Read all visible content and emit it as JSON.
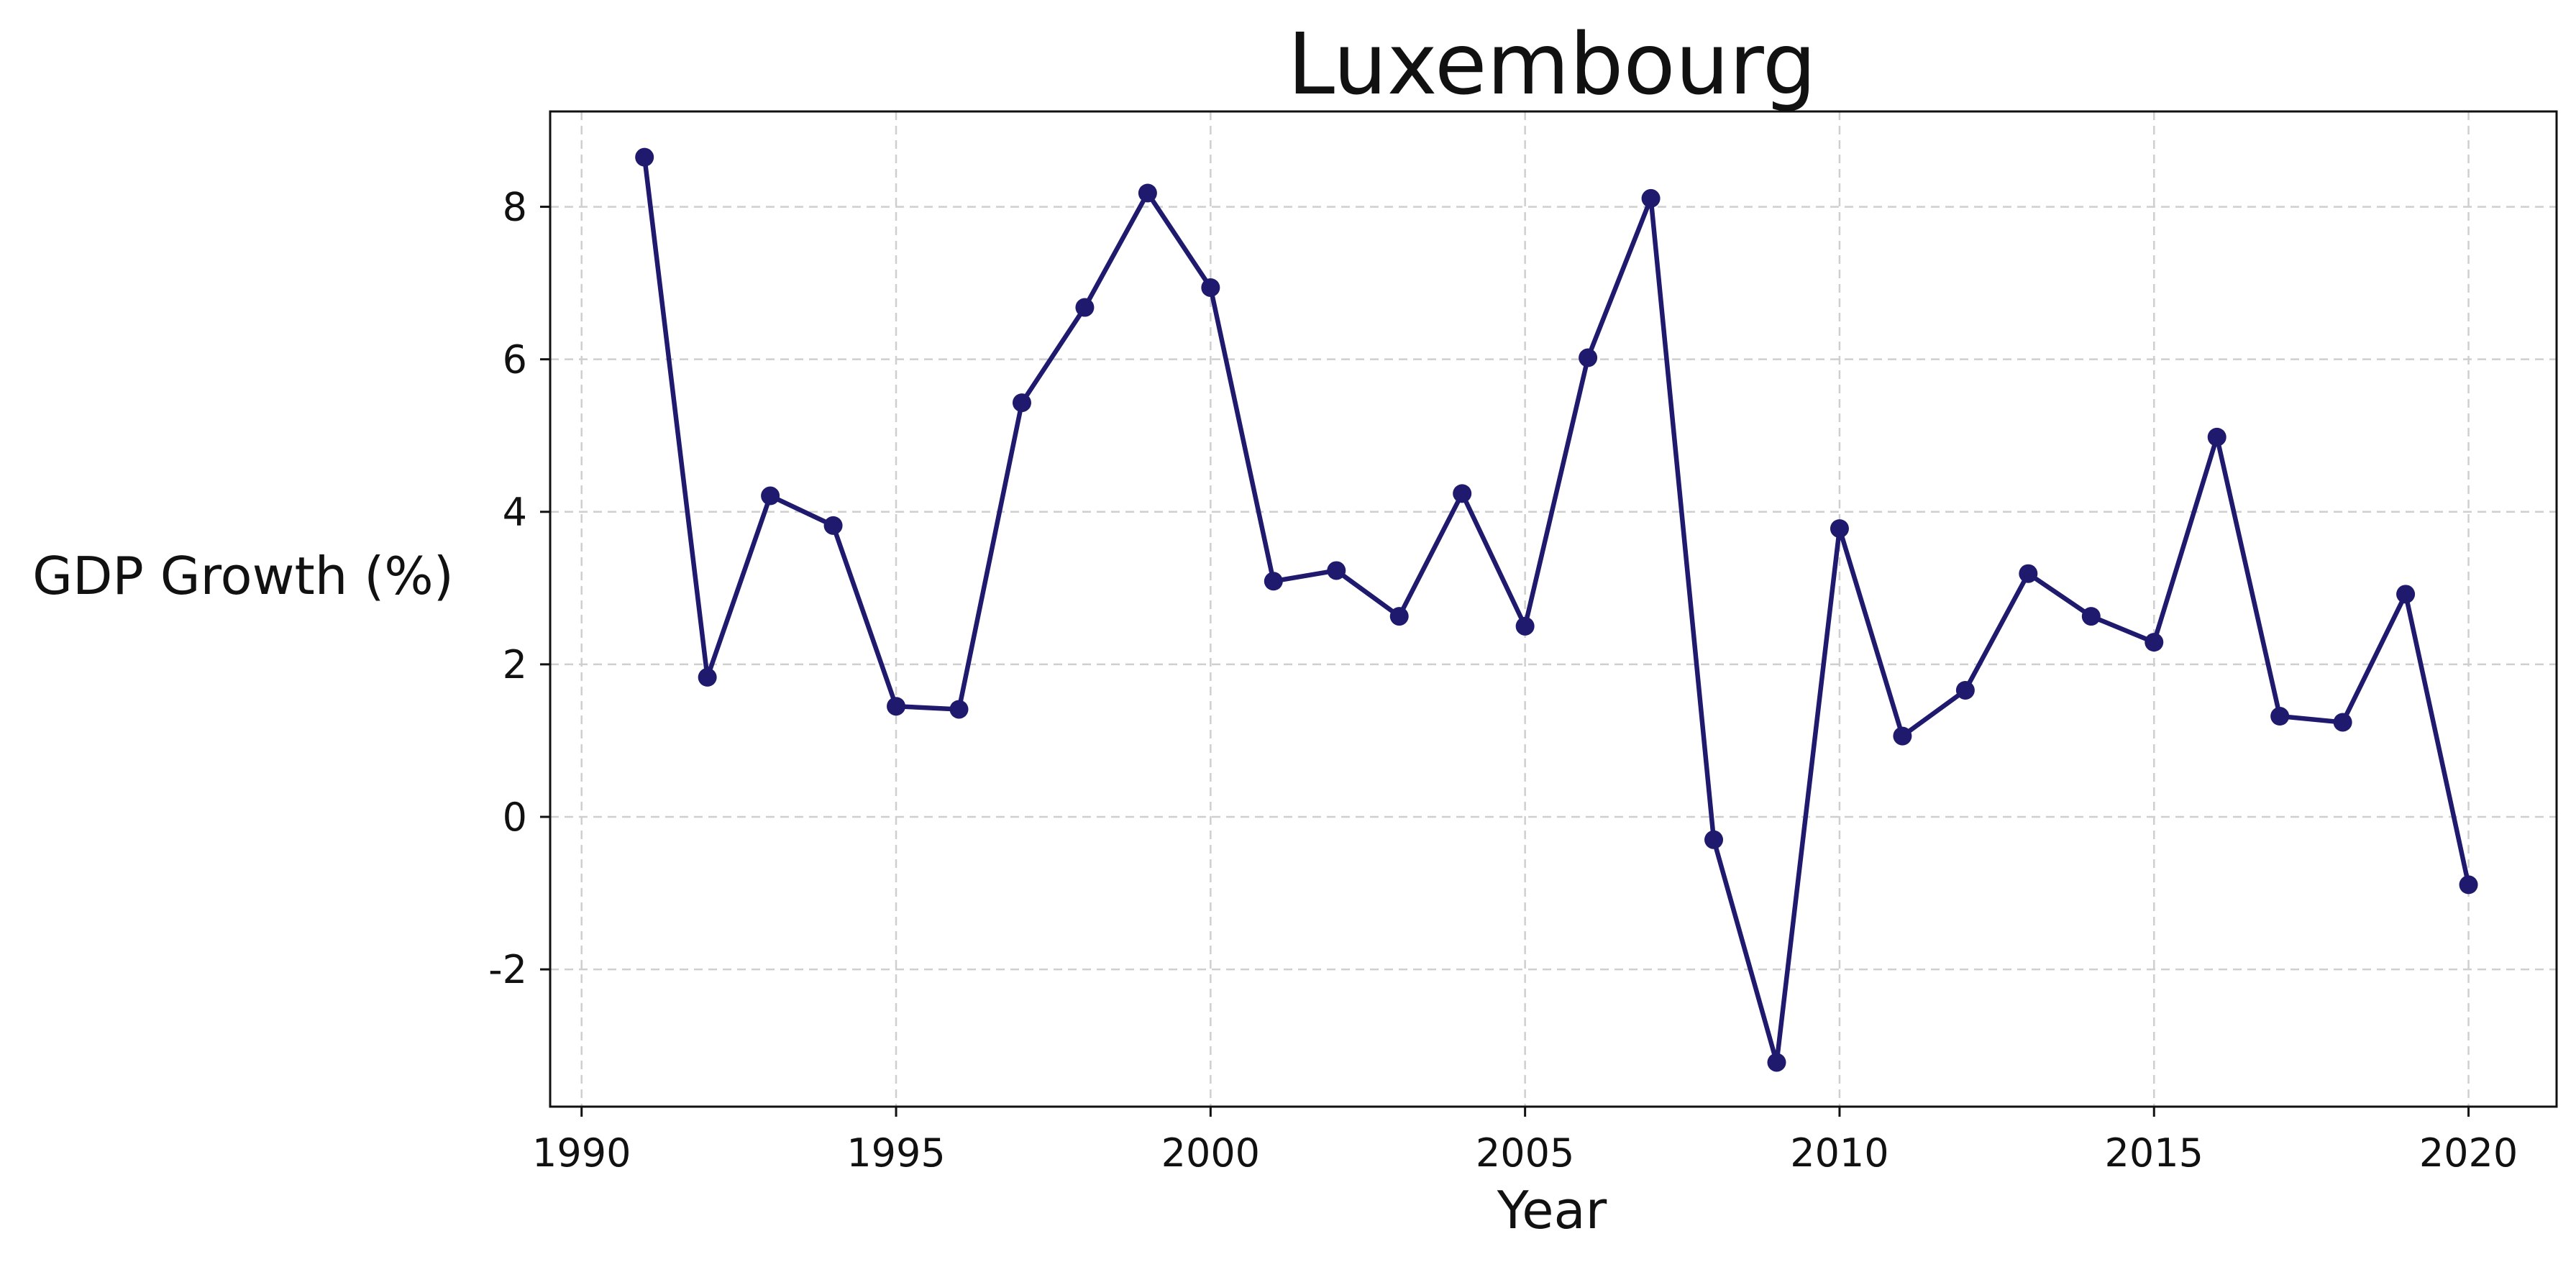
{
  "title": "Luxembourg",
  "chart_data": {
    "type": "line",
    "title": "Luxembourg",
    "xlabel": "Year",
    "ylabel": "GDP Growth (%)",
    "xlim": [
      1989.5,
      2021.4
    ],
    "ylim": [
      -3.8,
      9.25
    ],
    "grid": true,
    "x_ticks": [
      1990,
      1995,
      2000,
      2005,
      2010,
      2015,
      2020
    ],
    "y_ticks": [
      -2,
      0,
      2,
      4,
      6,
      8
    ],
    "series": [
      {
        "color": "#1f1a6e",
        "marker": "circle",
        "x": [
          1991,
          1992,
          1993,
          1994,
          1995,
          1996,
          1997,
          1998,
          1999,
          2000,
          2001,
          2002,
          2003,
          2004,
          2005,
          2006,
          2007,
          2008,
          2009,
          2010,
          2011,
          2012,
          2013,
          2014,
          2015,
          2016,
          2017,
          2018,
          2019,
          2020
        ],
        "y": [
          8.65,
          1.83,
          4.21,
          3.82,
          1.45,
          1.41,
          5.43,
          6.68,
          8.18,
          6.94,
          3.09,
          3.23,
          2.63,
          4.24,
          2.5,
          6.02,
          8.11,
          -0.3,
          -3.22,
          3.78,
          1.06,
          1.66,
          3.19,
          2.63,
          2.29,
          4.98,
          1.32,
          1.24,
          2.92,
          -0.89
        ]
      }
    ]
  }
}
